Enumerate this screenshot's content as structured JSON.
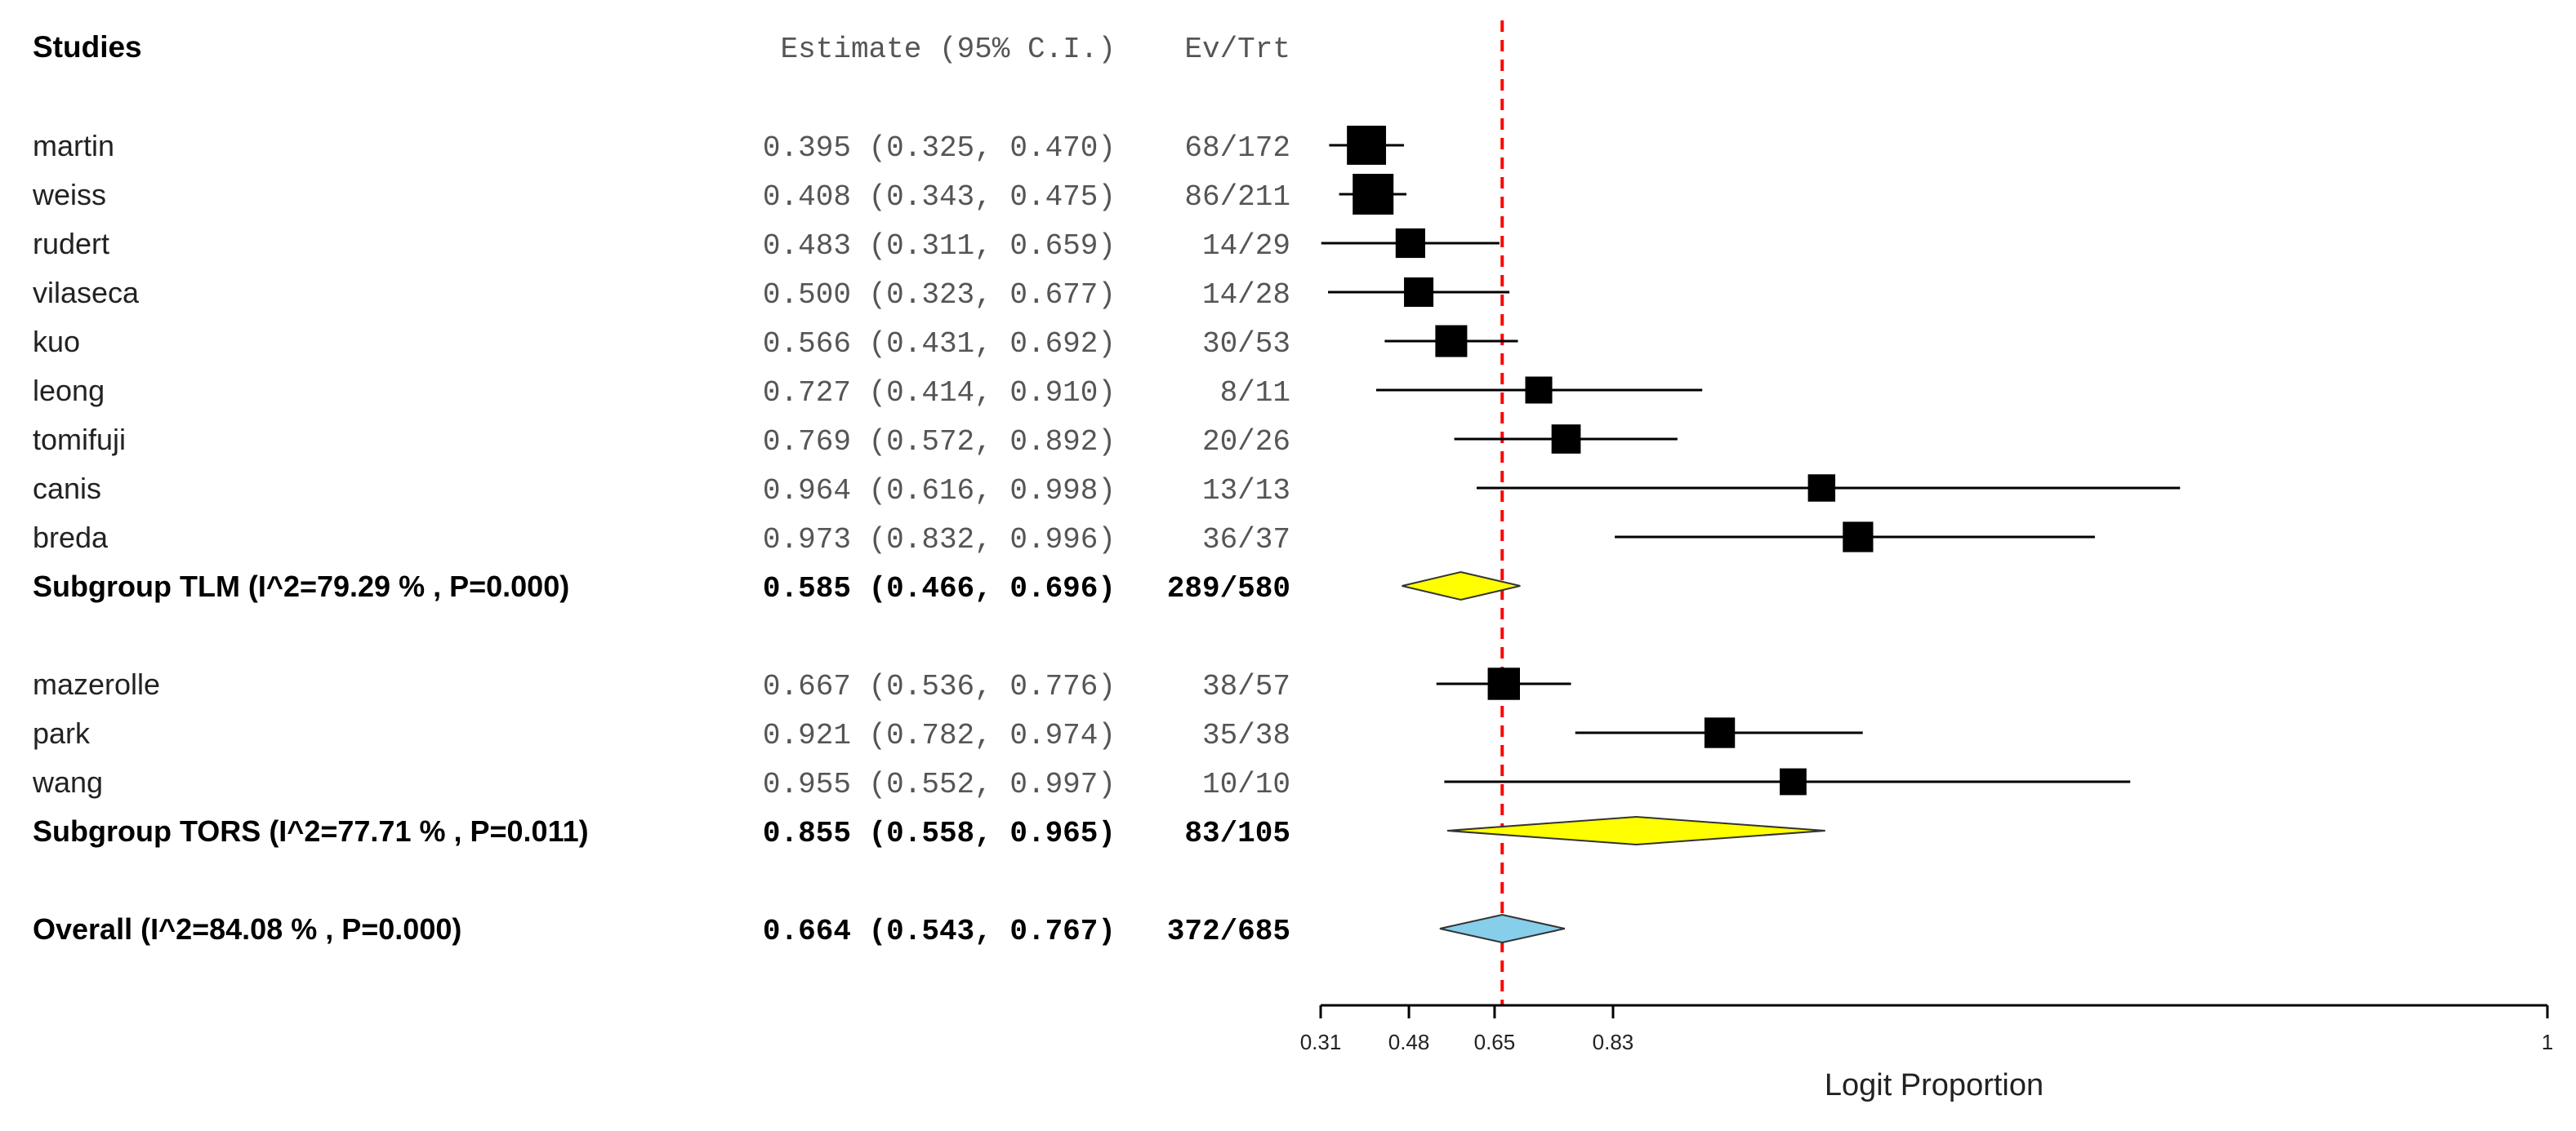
{
  "chart_data": {
    "type": "forest",
    "header": {
      "studies": "Studies",
      "estimate": "Estimate (95% C.I.)",
      "evtrt": "Ev/Trt"
    },
    "xlabel": "Logit Proportion",
    "x_ticks": [
      "0.31",
      "0.48",
      "0.65",
      "0.83",
      "1"
    ],
    "x_tick_values": [
      0.31,
      0.48,
      0.65,
      0.83,
      0.9999
    ],
    "reference_line": 0.664,
    "colors": {
      "subgroup_diamond": "#ffff00",
      "overall_diamond": "#87ceeb",
      "reference_line": "#ff0000",
      "square": "#000000"
    },
    "rows": [
      {
        "kind": "study",
        "label": "martin",
        "est": 0.395,
        "lo": 0.325,
        "hi": 0.47,
        "ci_text": "0.395 (0.325, 0.470)",
        "evtrt": "68/172",
        "weight": 172
      },
      {
        "kind": "study",
        "label": "weiss",
        "est": 0.408,
        "lo": 0.343,
        "hi": 0.475,
        "ci_text": "0.408 (0.343, 0.475)",
        "evtrt": "86/211",
        "weight": 211
      },
      {
        "kind": "study",
        "label": "rudert",
        "est": 0.483,
        "lo": 0.311,
        "hi": 0.659,
        "ci_text": "0.483 (0.311, 0.659)",
        "evtrt": "14/29",
        "weight": 29
      },
      {
        "kind": "study",
        "label": "vilaseca",
        "est": 0.5,
        "lo": 0.323,
        "hi": 0.677,
        "ci_text": "0.500 (0.323, 0.677)",
        "evtrt": "14/28",
        "weight": 28
      },
      {
        "kind": "study",
        "label": "kuo",
        "est": 0.566,
        "lo": 0.431,
        "hi": 0.692,
        "ci_text": "0.566 (0.431, 0.692)",
        "evtrt": "30/53",
        "weight": 53
      },
      {
        "kind": "study",
        "label": "leong",
        "est": 0.727,
        "lo": 0.414,
        "hi": 0.91,
        "ci_text": "0.727 (0.414, 0.910)",
        "evtrt": "8/11",
        "weight": 11
      },
      {
        "kind": "study",
        "label": "tomifuji",
        "est": 0.769,
        "lo": 0.572,
        "hi": 0.892,
        "ci_text": "0.769 (0.572, 0.892)",
        "evtrt": "20/26",
        "weight": 26
      },
      {
        "kind": "study",
        "label": "canis",
        "est": 0.964,
        "lo": 0.616,
        "hi": 0.998,
        "ci_text": "0.964 (0.616, 0.998)",
        "evtrt": "13/13",
        "weight": 13
      },
      {
        "kind": "study",
        "label": "breda",
        "est": 0.973,
        "lo": 0.832,
        "hi": 0.996,
        "ci_text": "0.973 (0.832, 0.996)",
        "evtrt": "36/37",
        "weight": 37
      },
      {
        "kind": "subgroup",
        "label": "Subgroup TLM (I^2=79.29 % , P=0.000)",
        "est": 0.585,
        "lo": 0.466,
        "hi": 0.696,
        "ci_text": "0.585 (0.466, 0.696)",
        "evtrt": "289/580"
      },
      {
        "kind": "blank"
      },
      {
        "kind": "study",
        "label": "mazerolle",
        "est": 0.667,
        "lo": 0.536,
        "hi": 0.776,
        "ci_text": "0.667 (0.536, 0.776)",
        "evtrt": "38/57",
        "weight": 57
      },
      {
        "kind": "study",
        "label": "park",
        "est": 0.921,
        "lo": 0.782,
        "hi": 0.974,
        "ci_text": "0.921 (0.782, 0.974)",
        "evtrt": "35/38",
        "weight": 38
      },
      {
        "kind": "study",
        "label": "wang",
        "est": 0.955,
        "lo": 0.552,
        "hi": 0.997,
        "ci_text": "0.955 (0.552, 0.997)",
        "evtrt": "10/10",
        "weight": 10
      },
      {
        "kind": "subgroup",
        "label": "Subgroup TORS (I^2=77.71 % , P=0.011)",
        "est": 0.855,
        "lo": 0.558,
        "hi": 0.965,
        "ci_text": "0.855 (0.558, 0.965)",
        "evtrt": "83/105"
      },
      {
        "kind": "blank"
      },
      {
        "kind": "overall",
        "label": "Overall (I^2=84.08 % , P=0.000)",
        "est": 0.664,
        "lo": 0.543,
        "hi": 0.767,
        "ci_text": "0.664 (0.543, 0.767)",
        "evtrt": "372/685"
      }
    ]
  }
}
